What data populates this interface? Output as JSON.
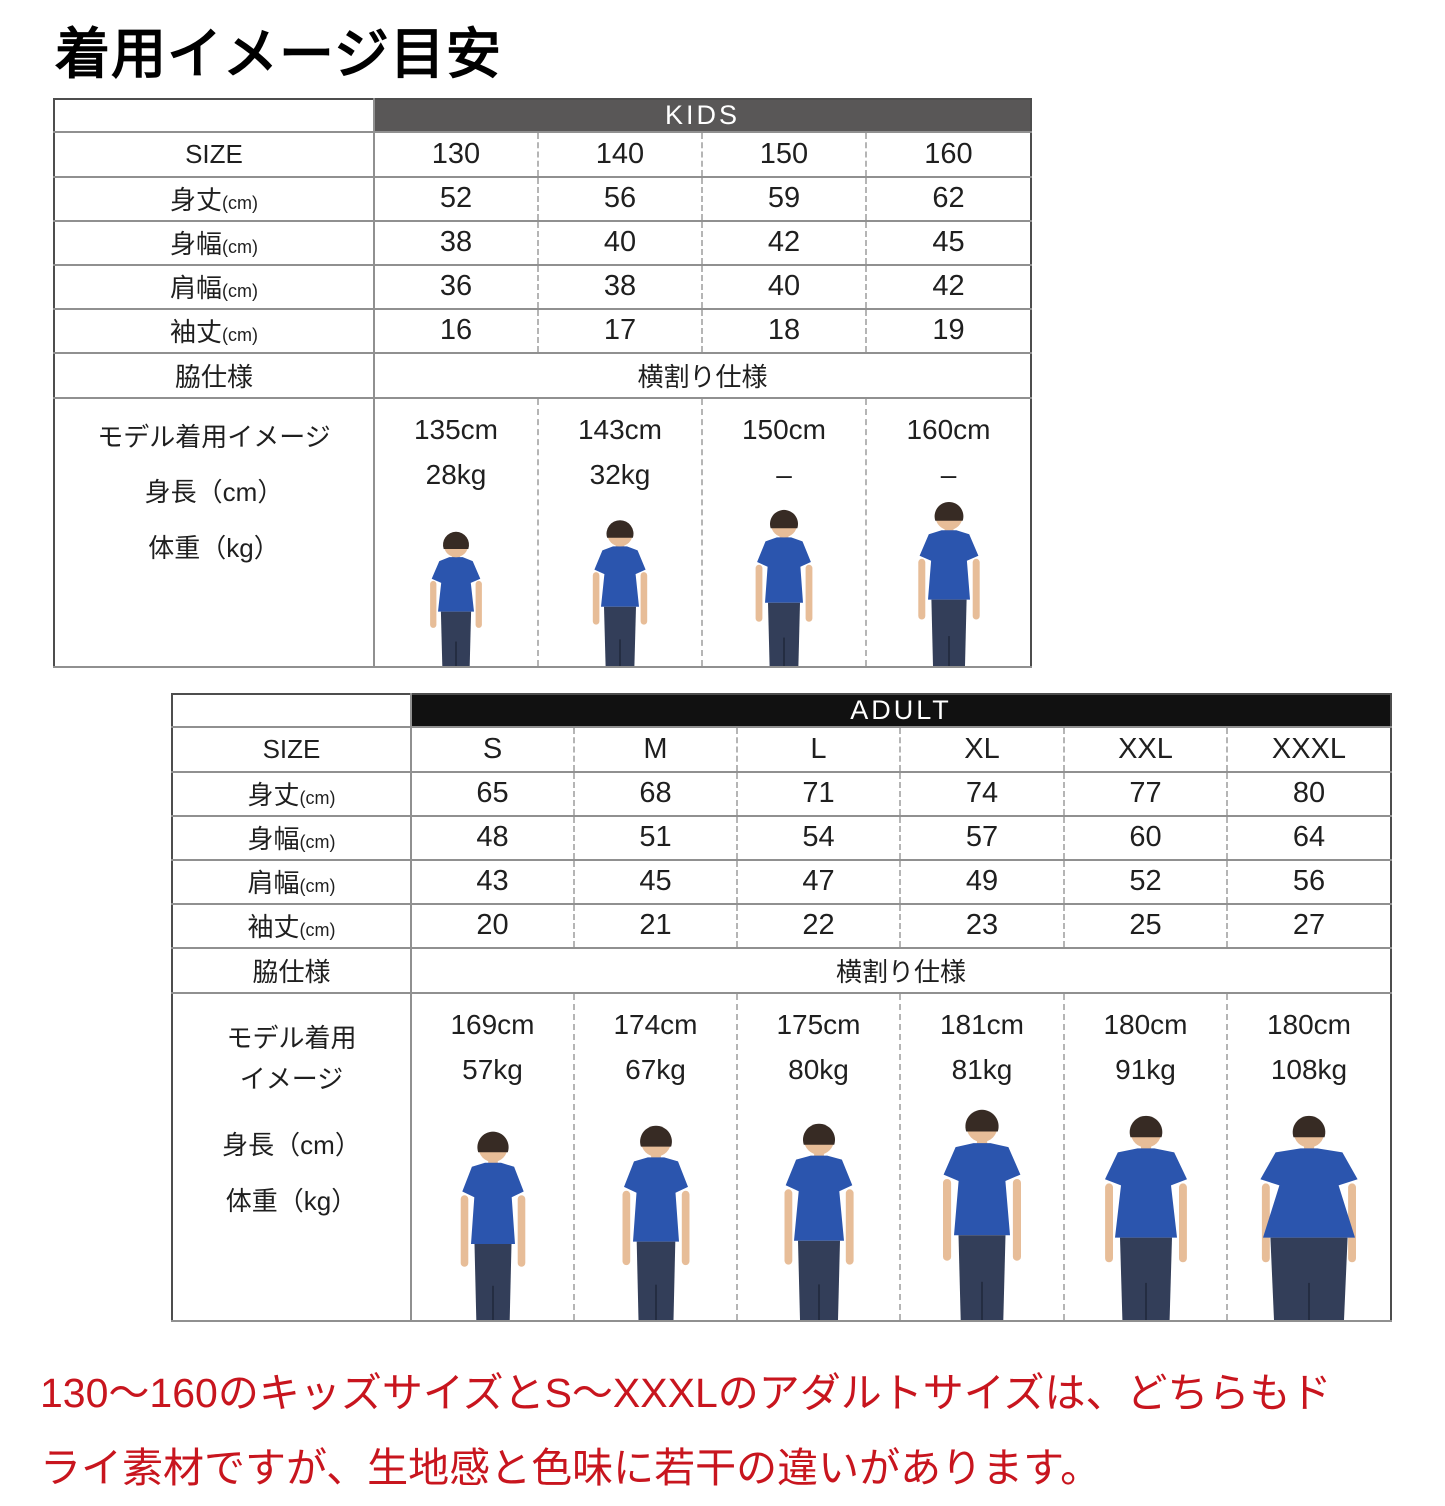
{
  "page": {
    "title": "着用イメージ目安",
    "note_lines": [
      "130〜160のキッズサイズとS〜XXXLのアダルトサイズは、どちらもド",
      "ライ素材ですが、生地感と色味に若干の違いがあります。"
    ],
    "colors": {
      "note_red": "#c8151e",
      "kids_header_bg": "#595757",
      "adult_header_bg": "#111111",
      "tshirt_blue": "#2b55ae"
    }
  },
  "tables": [
    {
      "id": "kids",
      "group_label": "KIDS",
      "header_bg": "#595757",
      "size_row_label": "SIZE",
      "sizes": [
        "130",
        "140",
        "150",
        "160"
      ],
      "measure_rows": [
        {
          "label": "身丈",
          "unit": "(cm)",
          "values": [
            "52",
            "56",
            "59",
            "62"
          ]
        },
        {
          "label": "身幅",
          "unit": "(cm)",
          "values": [
            "38",
            "40",
            "42",
            "45"
          ]
        },
        {
          "label": "肩幅",
          "unit": "(cm)",
          "values": [
            "36",
            "38",
            "40",
            "42"
          ]
        },
        {
          "label": "袖丈",
          "unit": "(cm)",
          "values": [
            "16",
            "17",
            "18",
            "19"
          ]
        }
      ],
      "side_spec_row": {
        "label": "脇仕様",
        "value": "横割り仕様"
      },
      "model_row": {
        "label_lines": [
          "モデル着用イメージ",
          "身長（cm）",
          "体重（kg）"
        ],
        "models": [
          {
            "height": "135cm",
            "weight": "28kg"
          },
          {
            "height": "143cm",
            "weight": "32kg"
          },
          {
            "height": "150cm",
            "weight": "–"
          },
          {
            "height": "160cm",
            "weight": "–"
          }
        ]
      }
    },
    {
      "id": "adult",
      "group_label": "ADULT",
      "header_bg": "#111111",
      "size_row_label": "SIZE",
      "sizes": [
        "S",
        "M",
        "L",
        "XL",
        "XXL",
        "XXXL"
      ],
      "measure_rows": [
        {
          "label": "身丈",
          "unit": "(cm)",
          "values": [
            "65",
            "68",
            "71",
            "74",
            "77",
            "80"
          ]
        },
        {
          "label": "身幅",
          "unit": "(cm)",
          "values": [
            "48",
            "51",
            "54",
            "57",
            "60",
            "64"
          ]
        },
        {
          "label": "肩幅",
          "unit": "(cm)",
          "values": [
            "43",
            "45",
            "47",
            "49",
            "52",
            "56"
          ]
        },
        {
          "label": "袖丈",
          "unit": "(cm)",
          "values": [
            "20",
            "21",
            "22",
            "23",
            "25",
            "27"
          ]
        }
      ],
      "side_spec_row": {
        "label": "脇仕様",
        "value": "横割り仕様"
      },
      "model_row": {
        "label_lines": [
          "モデル着用",
          "イメージ",
          "身長（cm）",
          "体重（kg）"
        ],
        "models": [
          {
            "height": "169cm",
            "weight": "57kg"
          },
          {
            "height": "174cm",
            "weight": "67kg"
          },
          {
            "height": "175cm",
            "weight": "80kg"
          },
          {
            "height": "181cm",
            "weight": "81kg"
          },
          {
            "height": "180cm",
            "weight": "91kg"
          },
          {
            "height": "180cm",
            "weight": "108kg"
          }
        ]
      }
    }
  ]
}
